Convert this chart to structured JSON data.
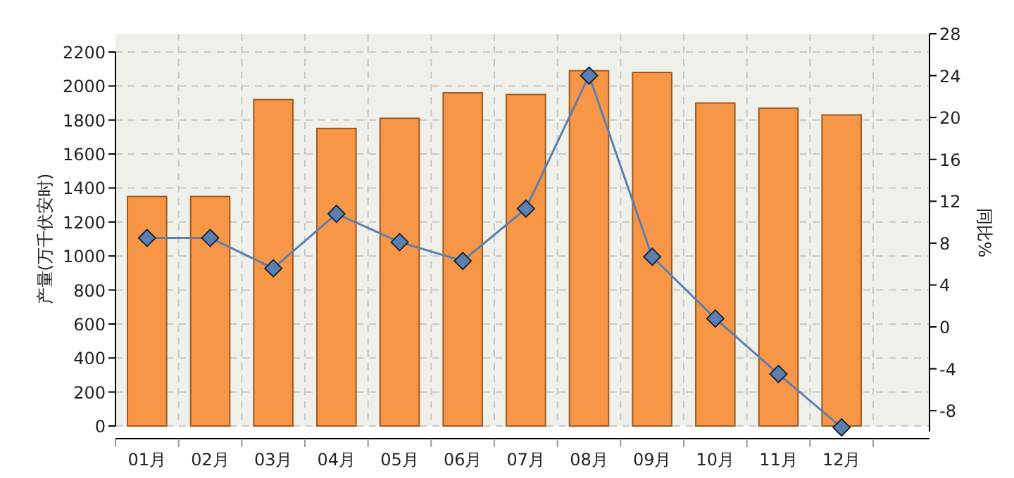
{
  "chart_data": {
    "type": "bar",
    "ylabel": "产量(万千伏安时)",
    "y2label": "同比%",
    "categories": [
      "01月",
      "02月",
      "03月",
      "04月",
      "05月",
      "06月",
      "07月",
      "08月",
      "09月",
      "10月",
      "11月",
      "12月"
    ],
    "ylim": [
      0,
      2200
    ],
    "yticks": [
      0,
      200,
      400,
      600,
      800,
      1000,
      1200,
      1400,
      1600,
      1800,
      2000,
      2200
    ],
    "y2lim": [
      -10,
      28
    ],
    "y2ticks": [
      -8,
      -4,
      0,
      4,
      8,
      12,
      16,
      20,
      24,
      28
    ],
    "grid": true,
    "series": [
      {
        "color": "#f79646",
        "values": [
          1350,
          1350,
          1920,
          1750,
          1810,
          1960,
          1950,
          2090,
          2080,
          1900,
          1870,
          1830
        ]
      },
      {
        "type": "line",
        "axis": "y2",
        "color": "#5b7fae",
        "marker": "diamond",
        "values": [
          8.5,
          8.5,
          5.6,
          10.8,
          8.1,
          6.3,
          11.3,
          24,
          6.7,
          0.8,
          -4.5,
          -9.6
        ]
      }
    ]
  }
}
